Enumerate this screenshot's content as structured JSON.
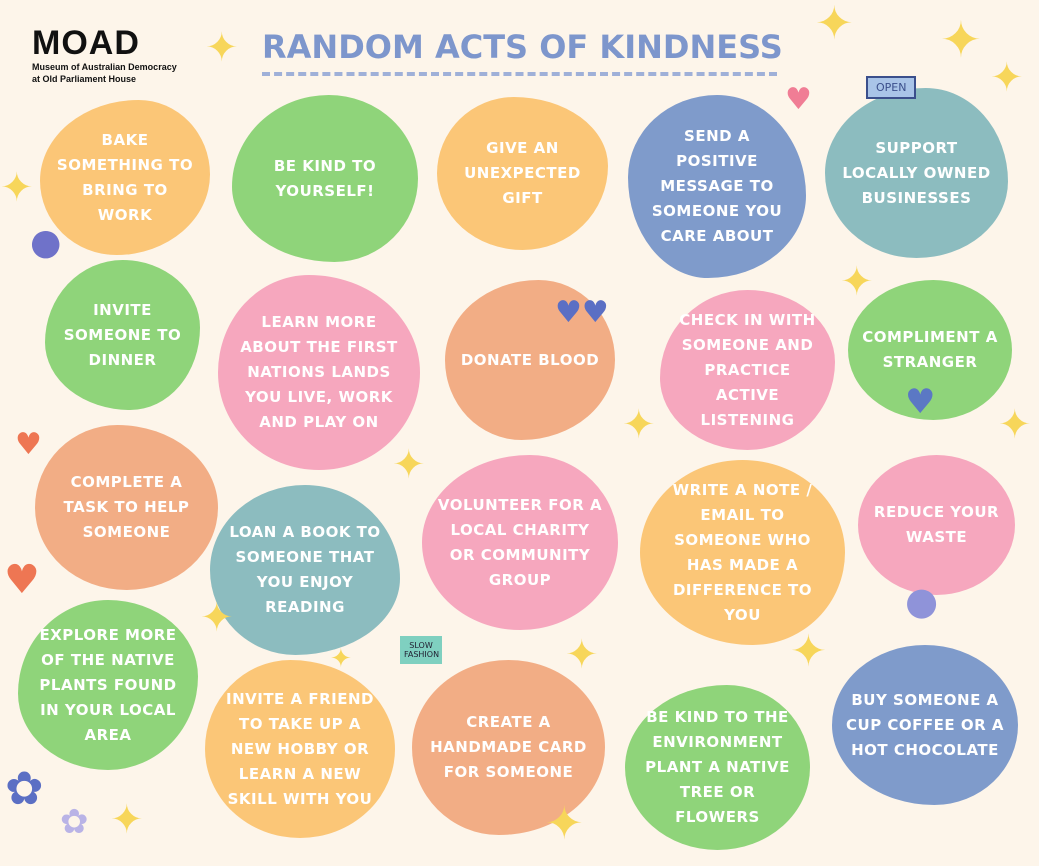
{
  "logo": {
    "mark": "MOAD",
    "subtitle_line1": "Museum of Australian Democracy",
    "subtitle_line2": "at Old Parliament House"
  },
  "title": "RANDOM ACTS OF KINDNESS",
  "colors": {
    "background": "#fdf5ea",
    "orange": "#fbc677",
    "green": "#8fd47a",
    "blue": "#7f9bcb",
    "teal": "#8cbcbf",
    "pink": "#f6a7be",
    "salmon": "#f2ad85",
    "star": "#f7d65a",
    "title": "#7d96cc"
  },
  "acts": [
    {
      "text": "Bake something to bring to work",
      "color": "#fbc677"
    },
    {
      "text": "Be kind to yourself!",
      "color": "#8fd47a"
    },
    {
      "text": "Give an unexpected gift",
      "color": "#fbc677"
    },
    {
      "text": "Send a positive message to someone you care about",
      "color": "#7f9bcb"
    },
    {
      "text": "Support locally owned businesses",
      "color": "#8cbcbf"
    },
    {
      "text": "Invite someone to dinner",
      "color": "#8fd47a"
    },
    {
      "text": "Learn more about the First Nations lands you live, work and play on",
      "color": "#f6a7be"
    },
    {
      "text": "Donate blood",
      "color": "#f2ad85"
    },
    {
      "text": "Check in with someone and practice active listening",
      "color": "#f6a7be"
    },
    {
      "text": "Compliment a stranger",
      "color": "#8fd47a"
    },
    {
      "text": "Complete a task to help someone",
      "color": "#f2ad85"
    },
    {
      "text": "Loan a book to someone that you enjoy reading",
      "color": "#8cbcbf"
    },
    {
      "text": "Volunteer for a local charity or community group",
      "color": "#f6a7be"
    },
    {
      "text": "Write a note / email to someone who has made a difference to you",
      "color": "#fbc677"
    },
    {
      "text": "Reduce your waste",
      "color": "#f6a7be"
    },
    {
      "text": "Explore  more of the native plants found in your local area",
      "color": "#8fd47a"
    },
    {
      "text": "Invite a friend to take up a new hobby or learn a new skill with you",
      "color": "#fbc677"
    },
    {
      "text": "Create a handmade card for someone",
      "color": "#f2ad85"
    },
    {
      "text": "Be kind to the environment plant a native tree or flowers",
      "color": "#8fd47a"
    },
    {
      "text": "Buy someone a cup coffee or a hot chocolate",
      "color": "#7f9bcb"
    }
  ],
  "illustration_text": {
    "open_sign": "OPEN",
    "tshirt": "SLOW FASHION"
  }
}
